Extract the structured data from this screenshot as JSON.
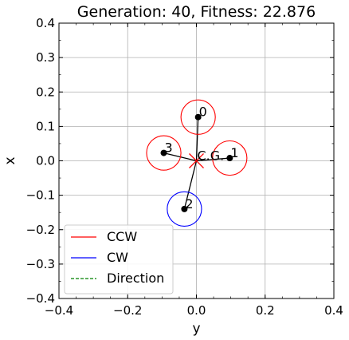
{
  "chart_data": {
    "type": "scatter",
    "title": "Generation: 40, Fitness: 22.876",
    "xlabel": "y",
    "ylabel": "x",
    "xlim": [
      -0.4,
      0.4
    ],
    "ylim": [
      -0.4,
      0.4
    ],
    "xticks": [
      -0.4,
      -0.2,
      0.0,
      0.2,
      0.4
    ],
    "yticks": [
      -0.4,
      -0.3,
      -0.2,
      -0.1,
      0.0,
      0.1,
      0.2,
      0.3,
      0.4
    ],
    "xtick_labels": [
      "−0.4",
      "−0.2",
      "0.0",
      "0.2",
      "0.4"
    ],
    "ytick_labels": [
      "−0.4",
      "−0.3",
      "−0.2",
      "−0.1",
      "0.0",
      "0.1",
      "0.2",
      "0.3",
      "0.4"
    ],
    "grid": true,
    "center": {
      "label": "C.G.",
      "y": 0.0,
      "x": 0.0,
      "marker": "x",
      "color": "#ff0000"
    },
    "rotors": [
      {
        "label": "0",
        "y": 0.005,
        "x": 0.127,
        "direction": "CCW",
        "color": "#ff0000"
      },
      {
        "label": "1",
        "y": 0.097,
        "x": 0.008,
        "direction": "CCW",
        "color": "#ff0000"
      },
      {
        "label": "2",
        "y": -0.035,
        "x": -0.14,
        "direction": "CW",
        "color": "#0000ff"
      },
      {
        "label": "3",
        "y": -0.095,
        "x": 0.023,
        "direction": "CCW",
        "color": "#ff0000"
      }
    ],
    "rotor_radius": 0.05,
    "legend": {
      "placement": "lower-left",
      "entries": [
        {
          "label": "CCW",
          "color": "#ff0000",
          "style": "solid"
        },
        {
          "label": "CW",
          "color": "#0000ff",
          "style": "solid"
        },
        {
          "label": "Direction",
          "color": "#008000",
          "style": "dashed"
        }
      ]
    }
  }
}
